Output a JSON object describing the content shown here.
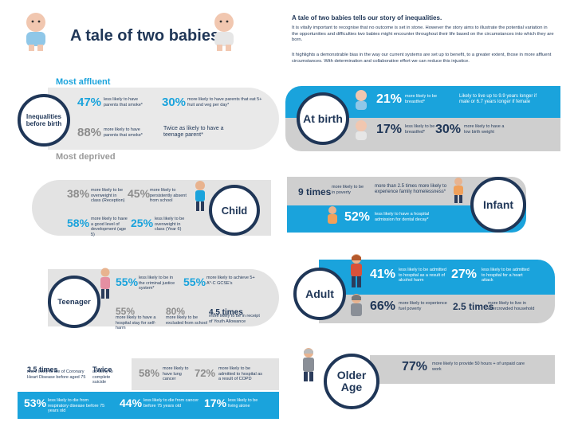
{
  "title": "A tale of two babies",
  "intro": {
    "heading": "A tale of two babies tells our story of inequalities.",
    "p1": "It is vitally important to recognise that no outcome is set in stone. However the story aims to illustrate the potential variation in the opportunities and difficulties two babies might encounter throughout their life based on the circumstances into which they are born.",
    "p2": "It highlights a demonstrable bias in the way our current systems are set up to benefit, to a greater extent, those in more affluent circumstances. With determination and collaborative effort we can reduce this injustice."
  },
  "left": {
    "most_affluent": "Most affluent",
    "most_deprived": "Most deprived",
    "inequalities_label": "Inequalities before birth",
    "child_label": "Child",
    "teenager_label": "Teenager",
    "before_birth": [
      {
        "pct": "47%",
        "text": "less likely to have parents that smoke*"
      },
      {
        "pct": "30%",
        "text": "more likely to have parents that eat 5+ fruit and veg per day*"
      },
      {
        "pct": "88%",
        "text": "more likely to have parents that smoke*"
      },
      {
        "pct": "Twice as likely to have a teenage parent*",
        "text": ""
      }
    ],
    "child": [
      {
        "pct": "38%",
        "text": "more likely to be overweight in class (Reception)"
      },
      {
        "pct": "45%",
        "text": "more likely to persistently absent from school"
      },
      {
        "pct": "58%",
        "text": "more likely to have a good level of development (age 5)"
      },
      {
        "pct": "25%",
        "text": "less likely to be overweight in class (Year 6)"
      }
    ],
    "teen": [
      {
        "pct": "55%",
        "text": "less likely to be in the criminal justice system*"
      },
      {
        "pct": "55%",
        "text": "more likely to achieve 5+ A*-C GCSE's"
      },
      {
        "pct": "55%",
        "text": "more likely to have a hospital stay for self-harm"
      },
      {
        "pct": "80%",
        "text": "more likely to be excluded from school"
      },
      {
        "pct": "4.5 times",
        "text": "more likely to be in receipt of Youth Allowance"
      }
    ],
    "older": [
      {
        "pct": "3.5 times",
        "text": "more likely to die of Coronary Heart Disease before aged 75"
      },
      {
        "pct": "Twice",
        "text": "as likely to complete suicide"
      },
      {
        "pct": "58%",
        "text": "more likely to have lung cancer"
      },
      {
        "pct": "72%",
        "text": "more likely to be admitted to hospital as a result of COPD"
      },
      {
        "pct": "53%",
        "text": "less likely to die from respiratory disease before 75 years old"
      },
      {
        "pct": "44%",
        "text": "less likely to die from cancer before 75 years old"
      },
      {
        "pct": "17%",
        "text": "less likely to be living alone"
      }
    ]
  },
  "right": {
    "at_birth_label": "At birth",
    "infant_label": "Infant",
    "adult_label": "Adult",
    "older_label": "Older Age",
    "at_birth": [
      {
        "pct": "21%",
        "text": "more likely to be breastfed*"
      },
      {
        "pct": "",
        "text": "Likely to live up to 9.9 years longer if male or 6.7 years longer if female"
      },
      {
        "pct": "17%",
        "text": "less likely to be breastfed*"
      },
      {
        "pct": "30%",
        "text": "more likely to have a low birth weight"
      }
    ],
    "infant": [
      {
        "pct": "9 times",
        "text": "more likely to be in poverty"
      },
      {
        "pct": "",
        "text": "more than 2.5 times more likely to experience family homelessness*"
      },
      {
        "pct": "52%",
        "text": "less likely to have a hospital admission for dental decay*"
      }
    ],
    "adult": [
      {
        "pct": "41%",
        "text": "less likely to be admitted to hospital as a result of alcohol harm"
      },
      {
        "pct": "27%",
        "text": "less likely to be admitted to hospital for a heart attack"
      },
      {
        "pct": "66%",
        "text": "more likely to experience fuel poverty"
      },
      {
        "pct": "2.5 times",
        "text": "more likely to live in overcrowded household"
      }
    ],
    "older": [
      {
        "pct": "77%",
        "text": "more likely to provide 50 hours + of unpaid care work"
      }
    ]
  }
}
